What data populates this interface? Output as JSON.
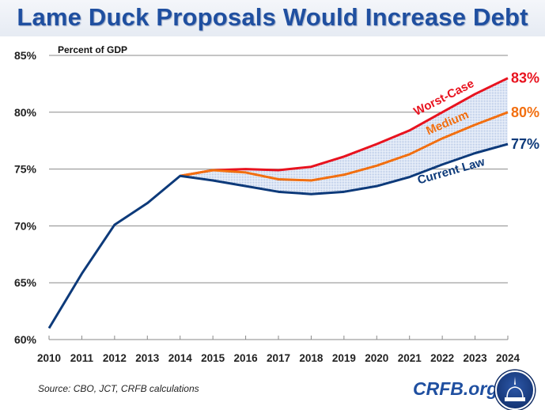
{
  "title": "Lame Duck Proposals Would Increase Debt",
  "source": "Source: CBO, JCT, CRFB calculations",
  "brand": "CRFB.org",
  "chart_data": {
    "type": "line",
    "ylabel": "Percent of GDP",
    "ylim": [
      60,
      85
    ],
    "yticks": [
      "60%",
      "65%",
      "70%",
      "75%",
      "80%",
      "85%"
    ],
    "ytick_values": [
      60,
      65,
      70,
      75,
      80,
      85
    ],
    "x": [
      2010,
      2011,
      2012,
      2013,
      2014,
      2015,
      2016,
      2017,
      2018,
      2019,
      2020,
      2021,
      2022,
      2023,
      2024
    ],
    "xticks": [
      "2010",
      "2011",
      "2012",
      "2013",
      "2014",
      "2015",
      "2016",
      "2017",
      "2018",
      "2019",
      "2020",
      "2021",
      "2022",
      "2023",
      "2024"
    ],
    "grid": true,
    "shaded_band": "between Current Law and Worst-Case, dotted light blue",
    "series": [
      {
        "name": "Worst-Case",
        "color": "#e8131f",
        "end_label": "83%",
        "values": [
          null,
          null,
          null,
          null,
          74.4,
          74.9,
          75.0,
          74.9,
          75.2,
          76.1,
          77.2,
          78.4,
          80.0,
          81.6,
          83.0
        ]
      },
      {
        "name": "Medium",
        "color": "#f26f10",
        "end_label": "80%",
        "values": [
          null,
          null,
          null,
          null,
          74.4,
          74.9,
          74.7,
          74.1,
          74.0,
          74.5,
          75.3,
          76.3,
          77.7,
          78.9,
          80.0
        ]
      },
      {
        "name": "Current Law",
        "color": "#0d3a7a",
        "end_label": "77%",
        "values": [
          61.0,
          65.8,
          70.1,
          72.0,
          74.4,
          74.0,
          73.5,
          73.0,
          72.8,
          73.0,
          73.5,
          74.3,
          75.4,
          76.4,
          77.2
        ]
      }
    ]
  }
}
